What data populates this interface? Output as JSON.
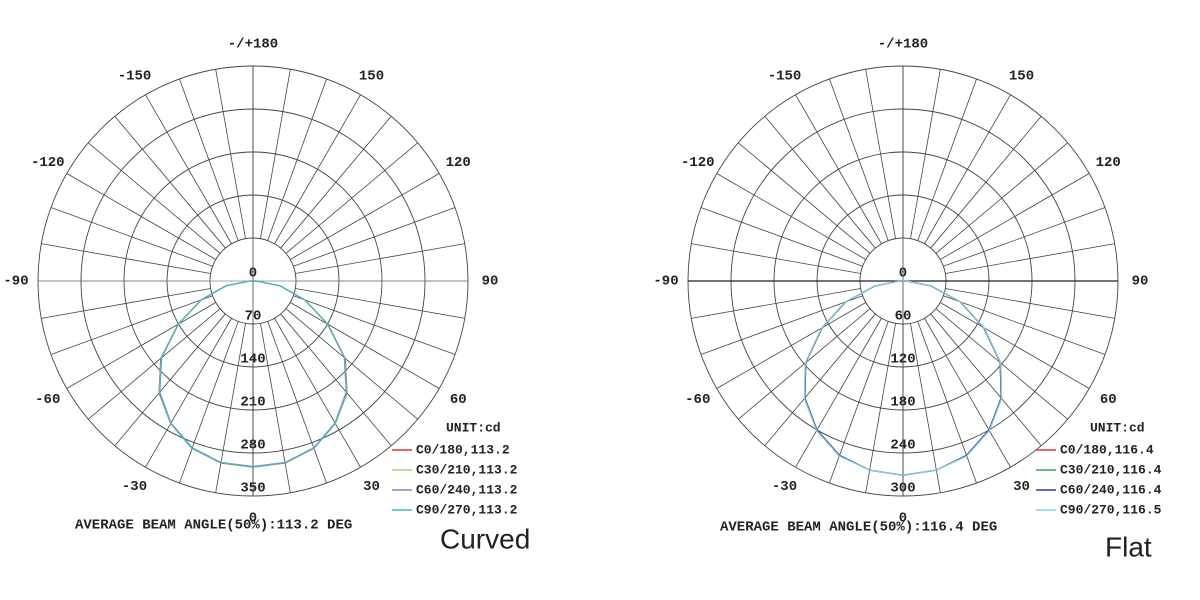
{
  "chart_data": [
    {
      "type": "polar",
      "caption": "Curved",
      "unit_label": "UNIT:cd",
      "annotation": "AVERAGE BEAM ANGLE(50%):113.2 DEG",
      "angle_ticks": [
        0,
        30,
        60,
        90,
        120,
        150,
        {
          "value": 180,
          "label": "-/+180"
        },
        -150,
        -120,
        -90,
        -60,
        -30
      ],
      "rlim": [
        0,
        350
      ],
      "rticks": [
        0,
        70,
        140,
        210,
        280,
        350
      ],
      "x": [
        -90,
        -80,
        -70,
        -60,
        -50,
        -40,
        -30,
        -20,
        -10,
        0,
        10,
        20,
        30,
        40,
        50,
        60,
        70,
        80,
        90
      ],
      "series": [
        {
          "name": "C0/180,113.2",
          "color": "#e03a3a",
          "values": [
            5,
            45,
            90,
            141,
            196,
            238,
            268,
            290,
            301,
            303,
            301,
            290,
            268,
            238,
            196,
            141,
            90,
            45,
            5
          ]
        },
        {
          "name": "C30/210,113.2",
          "color": "#9fcf84",
          "values": [
            5,
            45,
            90,
            140,
            195,
            237,
            268,
            290,
            300,
            303,
            300,
            290,
            268,
            237,
            195,
            140,
            90,
            45,
            5
          ]
        },
        {
          "name": "C60/240,113.2",
          "color": "#8a7fc4",
          "values": [
            5,
            44,
            89,
            140,
            194,
            236,
            267,
            289,
            300,
            302,
            300,
            289,
            267,
            236,
            194,
            140,
            89,
            44,
            5
          ]
        },
        {
          "name": "C90/270,113.2",
          "color": "#3fbcc4",
          "values": [
            5,
            45,
            90,
            140,
            195,
            237,
            268,
            290,
            300,
            303,
            300,
            290,
            268,
            237,
            195,
            140,
            90,
            45,
            5
          ]
        }
      ]
    },
    {
      "type": "polar",
      "caption": "Flat",
      "unit_label": "UNIT:cd",
      "annotation": "AVERAGE BEAM ANGLE(50%):116.4 DEG",
      "angle_ticks": [
        0,
        30,
        60,
        90,
        120,
        150,
        {
          "value": 180,
          "label": "-/+180"
        },
        -150,
        -120,
        -90,
        -60,
        -30
      ],
      "rlim": [
        0,
        300
      ],
      "rticks": [
        0,
        60,
        120,
        180,
        240,
        300
      ],
      "x": [
        -90,
        -80,
        -70,
        -60,
        -50,
        -40,
        -30,
        -20,
        -10,
        0,
        10,
        20,
        30,
        40,
        50,
        60,
        70,
        80,
        90
      ],
      "series": [
        {
          "name": "C0/180,116.4",
          "color": "#e03a3a",
          "values": [
            5,
            40,
            86,
            131,
            178,
            214,
            241,
            259,
            268,
            271,
            268,
            259,
            241,
            214,
            178,
            131,
            86,
            40,
            5
          ]
        },
        {
          "name": "C30/210,116.4",
          "color": "#3fa060",
          "values": [
            5,
            40,
            85,
            130,
            177,
            213,
            240,
            259,
            268,
            271,
            268,
            259,
            240,
            213,
            177,
            130,
            85,
            40,
            5
          ]
        },
        {
          "name": "C60/240,116.4",
          "color": "#2f3f9f",
          "values": [
            5,
            40,
            85,
            130,
            177,
            213,
            240,
            259,
            268,
            271,
            268,
            259,
            240,
            213,
            177,
            130,
            85,
            40,
            5
          ]
        },
        {
          "name": "C90/270,116.5",
          "color": "#86d0e2",
          "values": [
            5,
            41,
            86,
            131,
            178,
            214,
            241,
            260,
            268,
            271,
            268,
            260,
            241,
            214,
            178,
            131,
            86,
            41,
            5
          ]
        }
      ]
    }
  ]
}
